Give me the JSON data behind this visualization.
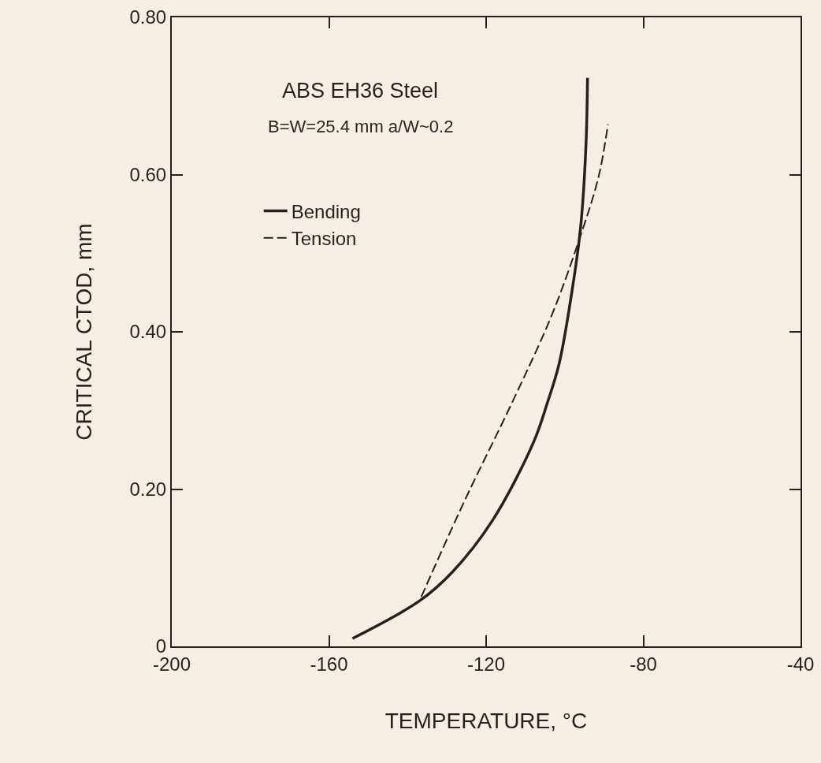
{
  "chart_data": {
    "type": "line",
    "xlabel": "TEMPERATURE, °C",
    "ylabel": "CRITICAL CTOD, mm",
    "annotations": [
      "ABS EH36 Steel",
      "B=W=25.4 mm a/W~0.2"
    ],
    "xlim": [
      -200,
      -40
    ],
    "xticks": [
      -200,
      -160,
      -120,
      -80,
      -40
    ],
    "ylim": [
      0,
      0.8
    ],
    "yticks": [
      0,
      {
        "value": 0.2,
        "label": "0.20"
      },
      {
        "value": 0.4,
        "label": "0.40"
      },
      {
        "value": 0.6,
        "label": "0.60"
      },
      {
        "value": 0.8,
        "label": "0.80"
      }
    ],
    "grid": false,
    "legend": "top left",
    "marker": "none",
    "series": [
      {
        "name": "Bending",
        "color": "#2a1f1c",
        "line_style": "solid",
        "x": [
          -154.0,
          -136.9,
          -128.5,
          -118.4,
          -107.9,
          -104.4,
          -101.4,
          -97.9,
          -95.9,
          -94.6,
          -94.2
        ],
        "values": [
          0.01,
          0.058,
          0.095,
          0.16,
          0.26,
          0.31,
          0.36,
          0.46,
          0.536,
          0.637,
          0.723
        ]
      },
      {
        "name": "Tension",
        "color": "#2a1f1c",
        "line_style": "dashed",
        "x": [
          -136.5,
          -125.5,
          -113.4,
          -103.4,
          -96.4,
          -91.4,
          -89.0
        ],
        "values": [
          0.063,
          0.185,
          0.31,
          0.42,
          0.516,
          0.597,
          0.664
        ]
      }
    ]
  }
}
